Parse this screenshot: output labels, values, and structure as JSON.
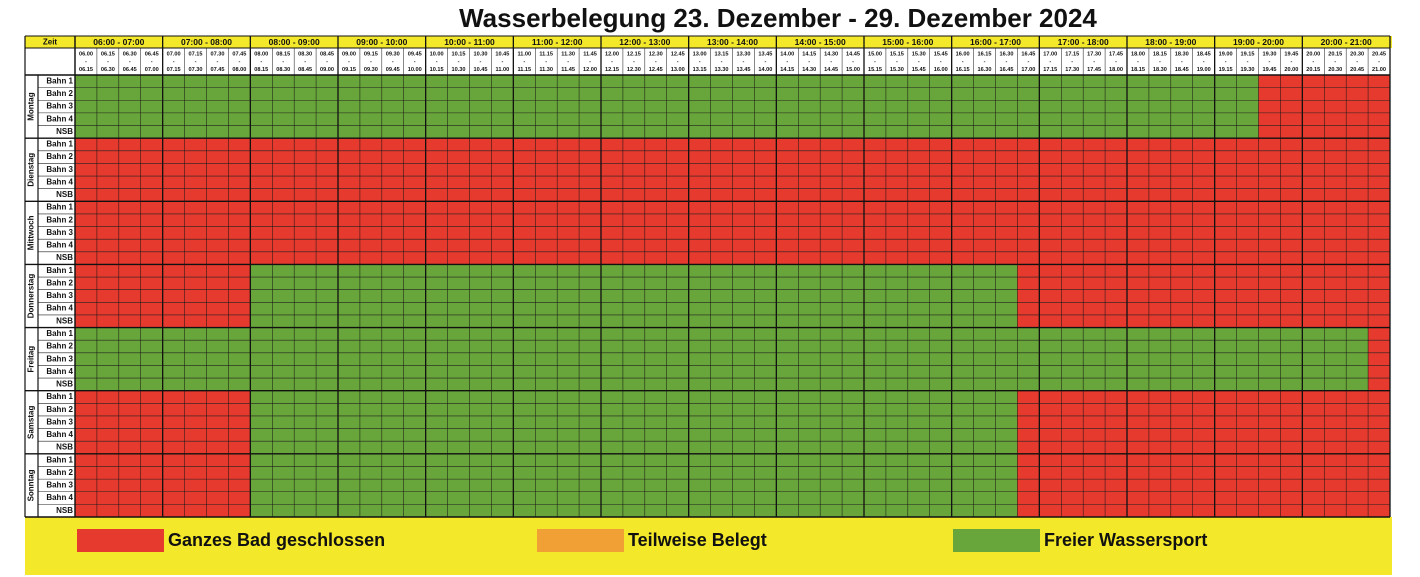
{
  "title": "Wasserbelegung 23. Dezember - 29. Dezember 2024",
  "header": {
    "zeit": "Zeit",
    "separator": "-",
    "hours": [
      "06:00 - 07:00",
      "07:00 - 08:00",
      "08:00 - 09:00",
      "09:00 - 10:00",
      "10:00 - 11:00",
      "11:00 - 12:00",
      "12:00 - 13:00",
      "13:00 - 14:00",
      "14:00 - 15:00",
      "15:00 - 16:00",
      "16:00 - 17:00",
      "17:00 - 18:00",
      "18:00 - 19:00",
      "19:00 - 20:00",
      "20:00 - 21:00"
    ],
    "slots": [
      {
        "start": "06.00",
        "end": "06.15"
      },
      {
        "start": "06.15",
        "end": "06.30"
      },
      {
        "start": "06.30",
        "end": "06.45"
      },
      {
        "start": "06.45",
        "end": "07.00"
      },
      {
        "start": "07.00",
        "end": "07.15"
      },
      {
        "start": "07.15",
        "end": "07.30"
      },
      {
        "start": "07.30",
        "end": "07.45"
      },
      {
        "start": "07.45",
        "end": "08.00"
      },
      {
        "start": "08.00",
        "end": "08.15"
      },
      {
        "start": "08.15",
        "end": "08.30"
      },
      {
        "start": "08.30",
        "end": "08.45"
      },
      {
        "start": "08.45",
        "end": "09.00"
      },
      {
        "start": "09.00",
        "end": "09.15"
      },
      {
        "start": "09.15",
        "end": "09.30"
      },
      {
        "start": "09.30",
        "end": "09.45"
      },
      {
        "start": "09.45",
        "end": "10.00"
      },
      {
        "start": "10.00",
        "end": "10.15"
      },
      {
        "start": "10.15",
        "end": "10.30"
      },
      {
        "start": "10.30",
        "end": "10.45"
      },
      {
        "start": "10.45",
        "end": "11.00"
      },
      {
        "start": "11.00",
        "end": "11.15"
      },
      {
        "start": "11.15",
        "end": "11.30"
      },
      {
        "start": "11.30",
        "end": "11.45"
      },
      {
        "start": "11.45",
        "end": "12.00"
      },
      {
        "start": "12.00",
        "end": "12.15"
      },
      {
        "start": "12.15",
        "end": "12.30"
      },
      {
        "start": "12.30",
        "end": "12.45"
      },
      {
        "start": "12.45",
        "end": "13.00"
      },
      {
        "start": "13.00",
        "end": "13.15"
      },
      {
        "start": "13.15",
        "end": "13.30"
      },
      {
        "start": "13.30",
        "end": "13.45"
      },
      {
        "start": "13.45",
        "end": "14.00"
      },
      {
        "start": "14.00",
        "end": "14.15"
      },
      {
        "start": "14.15",
        "end": "14.30"
      },
      {
        "start": "14.30",
        "end": "14.45"
      },
      {
        "start": "14.45",
        "end": "15.00"
      },
      {
        "start": "15.00",
        "end": "15.15"
      },
      {
        "start": "15.15",
        "end": "15.30"
      },
      {
        "start": "15.30",
        "end": "15.45"
      },
      {
        "start": "15.45",
        "end": "16.00"
      },
      {
        "start": "16.00",
        "end": "16.15"
      },
      {
        "start": "16.15",
        "end": "16.30"
      },
      {
        "start": "16.30",
        "end": "16.45"
      },
      {
        "start": "16.45",
        "end": "17.00"
      },
      {
        "start": "17.00",
        "end": "17.15"
      },
      {
        "start": "17.15",
        "end": "17.30"
      },
      {
        "start": "17.30",
        "end": "17.45"
      },
      {
        "start": "17.45",
        "end": "18.00"
      },
      {
        "start": "18.00",
        "end": "18.15"
      },
      {
        "start": "18.15",
        "end": "18.30"
      },
      {
        "start": "18.30",
        "end": "18.45"
      },
      {
        "start": "18.45",
        "end": "19.00"
      },
      {
        "start": "19.00",
        "end": "19.15"
      },
      {
        "start": "19.15",
        "end": "19.30"
      },
      {
        "start": "19.30",
        "end": "19.45"
      },
      {
        "start": "19.45",
        "end": "20.00"
      },
      {
        "start": "20.00",
        "end": "20.15"
      },
      {
        "start": "20.15",
        "end": "20.30"
      },
      {
        "start": "20.30",
        "end": "20.45"
      },
      {
        "start": "20.45",
        "end": "21.00"
      }
    ]
  },
  "days": [
    {
      "name": "Montag",
      "lanes": [
        "Bahn 1",
        "Bahn 2",
        "Bahn 3",
        "Bahn 4",
        "NSB"
      ],
      "colors": [
        "#68a53a",
        "#68a53a",
        "#68a53a",
        "#68a53a",
        "#68a53a",
        "#68a53a",
        "#68a53a",
        "#68a53a",
        "#68a53a",
        "#68a53a",
        "#68a53a",
        "#68a53a",
        "#68a53a",
        "#68a53a",
        "#68a53a",
        "#68a53a",
        "#68a53a",
        "#68a53a",
        "#68a53a",
        "#68a53a",
        "#68a53a",
        "#68a53a",
        "#68a53a",
        "#68a53a",
        "#68a53a",
        "#68a53a",
        "#68a53a",
        "#68a53a",
        "#68a53a",
        "#68a53a",
        "#68a53a",
        "#68a53a",
        "#68a53a",
        "#68a53a",
        "#68a53a",
        "#68a53a",
        "#68a53a",
        "#68a53a",
        "#68a53a",
        "#68a53a",
        "#68a53a",
        "#68a53a",
        "#68a53a",
        "#68a53a",
        "#68a53a",
        "#68a53a",
        "#68a53a",
        "#68a53a",
        "#68a53a",
        "#68a53a",
        "#68a53a",
        "#68a53a",
        "#68a53a",
        "#68a53a",
        "#e63a2e",
        "#e63a2e",
        "#e63a2e",
        "#e63a2e",
        "#e63a2e",
        "#e63a2e"
      ]
    },
    {
      "name": "Dienstag",
      "lanes": [
        "Bahn 1",
        "Bahn 2",
        "Bahn 3",
        "Bahn 4",
        "NSB"
      ],
      "colors": [
        "#e63a2e",
        "#e63a2e",
        "#e63a2e",
        "#e63a2e",
        "#e63a2e",
        "#e63a2e",
        "#e63a2e",
        "#e63a2e",
        "#e63a2e",
        "#e63a2e",
        "#e63a2e",
        "#e63a2e",
        "#e63a2e",
        "#e63a2e",
        "#e63a2e",
        "#e63a2e",
        "#e63a2e",
        "#e63a2e",
        "#e63a2e",
        "#e63a2e",
        "#e63a2e",
        "#e63a2e",
        "#e63a2e",
        "#e63a2e",
        "#e63a2e",
        "#e63a2e",
        "#e63a2e",
        "#e63a2e",
        "#e63a2e",
        "#e63a2e",
        "#e63a2e",
        "#e63a2e",
        "#e63a2e",
        "#e63a2e",
        "#e63a2e",
        "#e63a2e",
        "#e63a2e",
        "#e63a2e",
        "#e63a2e",
        "#e63a2e",
        "#e63a2e",
        "#e63a2e",
        "#e63a2e",
        "#e63a2e",
        "#e63a2e",
        "#e63a2e",
        "#e63a2e",
        "#e63a2e",
        "#e63a2e",
        "#e63a2e",
        "#e63a2e",
        "#e63a2e",
        "#e63a2e",
        "#e63a2e",
        "#e63a2e",
        "#e63a2e",
        "#e63a2e",
        "#e63a2e",
        "#e63a2e",
        "#e63a2e"
      ]
    },
    {
      "name": "Mittwoch",
      "lanes": [
        "Bahn 1",
        "Bahn 2",
        "Bahn 3",
        "Bahn 4",
        "NSB"
      ],
      "colors": [
        "#e63a2e",
        "#e63a2e",
        "#e63a2e",
        "#e63a2e",
        "#e63a2e",
        "#e63a2e",
        "#e63a2e",
        "#e63a2e",
        "#e63a2e",
        "#e63a2e",
        "#e63a2e",
        "#e63a2e",
        "#e63a2e",
        "#e63a2e",
        "#e63a2e",
        "#e63a2e",
        "#e63a2e",
        "#e63a2e",
        "#e63a2e",
        "#e63a2e",
        "#e63a2e",
        "#e63a2e",
        "#e63a2e",
        "#e63a2e",
        "#e63a2e",
        "#e63a2e",
        "#e63a2e",
        "#e63a2e",
        "#e63a2e",
        "#e63a2e",
        "#e63a2e",
        "#e63a2e",
        "#e63a2e",
        "#e63a2e",
        "#e63a2e",
        "#e63a2e",
        "#e63a2e",
        "#e63a2e",
        "#e63a2e",
        "#e63a2e",
        "#e63a2e",
        "#e63a2e",
        "#e63a2e",
        "#e63a2e",
        "#e63a2e",
        "#e63a2e",
        "#e63a2e",
        "#e63a2e",
        "#e63a2e",
        "#e63a2e",
        "#e63a2e",
        "#e63a2e",
        "#e63a2e",
        "#e63a2e",
        "#e63a2e",
        "#e63a2e",
        "#e63a2e",
        "#e63a2e",
        "#e63a2e",
        "#e63a2e"
      ]
    },
    {
      "name": "Donnerstag",
      "lanes": [
        "Bahn 1",
        "Bahn 2",
        "Bahn 3",
        "Bahn 4",
        "NSB"
      ],
      "colors": [
        "#e63a2e",
        "#e63a2e",
        "#e63a2e",
        "#e63a2e",
        "#e63a2e",
        "#e63a2e",
        "#e63a2e",
        "#e63a2e",
        "#68a53a",
        "#68a53a",
        "#68a53a",
        "#68a53a",
        "#68a53a",
        "#68a53a",
        "#68a53a",
        "#68a53a",
        "#68a53a",
        "#68a53a",
        "#68a53a",
        "#68a53a",
        "#68a53a",
        "#68a53a",
        "#68a53a",
        "#68a53a",
        "#68a53a",
        "#68a53a",
        "#68a53a",
        "#68a53a",
        "#68a53a",
        "#68a53a",
        "#68a53a",
        "#68a53a",
        "#68a53a",
        "#68a53a",
        "#68a53a",
        "#68a53a",
        "#68a53a",
        "#68a53a",
        "#68a53a",
        "#68a53a",
        "#68a53a",
        "#68a53a",
        "#68a53a",
        "#e63a2e",
        "#e63a2e",
        "#e63a2e",
        "#e63a2e",
        "#e63a2e",
        "#e63a2e",
        "#e63a2e",
        "#e63a2e",
        "#e63a2e",
        "#e63a2e",
        "#e63a2e",
        "#e63a2e",
        "#e63a2e",
        "#e63a2e",
        "#e63a2e",
        "#e63a2e",
        "#e63a2e"
      ]
    },
    {
      "name": "Freitag",
      "lanes": [
        "Bahn 1",
        "Bahn 2",
        "Bahn 3",
        "Bahn 4",
        "NSB"
      ],
      "colors": [
        "#68a53a",
        "#68a53a",
        "#68a53a",
        "#68a53a",
        "#68a53a",
        "#68a53a",
        "#68a53a",
        "#68a53a",
        "#68a53a",
        "#68a53a",
        "#68a53a",
        "#68a53a",
        "#68a53a",
        "#68a53a",
        "#68a53a",
        "#68a53a",
        "#68a53a",
        "#68a53a",
        "#68a53a",
        "#68a53a",
        "#68a53a",
        "#68a53a",
        "#68a53a",
        "#68a53a",
        "#68a53a",
        "#68a53a",
        "#68a53a",
        "#68a53a",
        "#68a53a",
        "#68a53a",
        "#68a53a",
        "#68a53a",
        "#68a53a",
        "#68a53a",
        "#68a53a",
        "#68a53a",
        "#68a53a",
        "#68a53a",
        "#68a53a",
        "#68a53a",
        "#68a53a",
        "#68a53a",
        "#68a53a",
        "#68a53a",
        "#68a53a",
        "#68a53a",
        "#68a53a",
        "#68a53a",
        "#68a53a",
        "#68a53a",
        "#68a53a",
        "#68a53a",
        "#68a53a",
        "#68a53a",
        "#68a53a",
        "#68a53a",
        "#68a53a",
        "#68a53a",
        "#68a53a",
        "#e63a2e"
      ]
    },
    {
      "name": "Samstag",
      "lanes": [
        "Bahn 1",
        "Bahn 2",
        "Bahn 3",
        "Bahn 4",
        "NSB"
      ],
      "colors": [
        "#e63a2e",
        "#e63a2e",
        "#e63a2e",
        "#e63a2e",
        "#e63a2e",
        "#e63a2e",
        "#e63a2e",
        "#e63a2e",
        "#68a53a",
        "#68a53a",
        "#68a53a",
        "#68a53a",
        "#68a53a",
        "#68a53a",
        "#68a53a",
        "#68a53a",
        "#68a53a",
        "#68a53a",
        "#68a53a",
        "#68a53a",
        "#68a53a",
        "#68a53a",
        "#68a53a",
        "#68a53a",
        "#68a53a",
        "#68a53a",
        "#68a53a",
        "#68a53a",
        "#68a53a",
        "#68a53a",
        "#68a53a",
        "#68a53a",
        "#68a53a",
        "#68a53a",
        "#68a53a",
        "#68a53a",
        "#68a53a",
        "#68a53a",
        "#68a53a",
        "#68a53a",
        "#68a53a",
        "#68a53a",
        "#68a53a",
        "#e63a2e",
        "#e63a2e",
        "#e63a2e",
        "#e63a2e",
        "#e63a2e",
        "#e63a2e",
        "#e63a2e",
        "#e63a2e",
        "#e63a2e",
        "#e63a2e",
        "#e63a2e",
        "#e63a2e",
        "#e63a2e",
        "#e63a2e",
        "#e63a2e",
        "#e63a2e",
        "#e63a2e"
      ]
    },
    {
      "name": "Sonntag",
      "lanes": [
        "Bahn 1",
        "Bahn 2",
        "Bahn 3",
        "Bahn 4",
        "NSB"
      ],
      "colors": [
        "#e63a2e",
        "#e63a2e",
        "#e63a2e",
        "#e63a2e",
        "#e63a2e",
        "#e63a2e",
        "#e63a2e",
        "#e63a2e",
        "#68a53a",
        "#68a53a",
        "#68a53a",
        "#68a53a",
        "#68a53a",
        "#68a53a",
        "#68a53a",
        "#68a53a",
        "#68a53a",
        "#68a53a",
        "#68a53a",
        "#68a53a",
        "#68a53a",
        "#68a53a",
        "#68a53a",
        "#68a53a",
        "#68a53a",
        "#68a53a",
        "#68a53a",
        "#68a53a",
        "#68a53a",
        "#68a53a",
        "#68a53a",
        "#68a53a",
        "#68a53a",
        "#68a53a",
        "#68a53a",
        "#68a53a",
        "#68a53a",
        "#68a53a",
        "#68a53a",
        "#68a53a",
        "#68a53a",
        "#68a53a",
        "#68a53a",
        "#e63a2e",
        "#e63a2e",
        "#e63a2e",
        "#e63a2e",
        "#e63a2e",
        "#e63a2e",
        "#e63a2e",
        "#e63a2e",
        "#e63a2e",
        "#e63a2e",
        "#e63a2e",
        "#e63a2e",
        "#e63a2e",
        "#e63a2e",
        "#e63a2e",
        "#e63a2e",
        "#e63a2e"
      ]
    }
  ],
  "legend": [
    {
      "label": "Ganzes Bad geschlossen",
      "color": "#e63a2e"
    },
    {
      "label": "Teilweise Belegt",
      "color": "#f0a035"
    },
    {
      "label": "Freier Wassersport",
      "color": "#68a53a"
    }
  ]
}
